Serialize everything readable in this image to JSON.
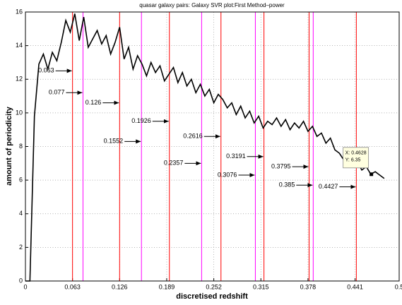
{
  "chart_data": {
    "type": "line",
    "title": "quasar galaxy pairs: Galaxy SVR plot:First Method–power",
    "xlabel": "discretised redshift",
    "ylabel": "amount of periodicity",
    "xlim": [
      0,
      0.5
    ],
    "xticks": [
      0,
      0.063,
      0.126,
      0.189,
      0.252,
      0.315,
      0.378,
      0.441,
      0.5
    ],
    "ylim": [
      0,
      16
    ],
    "yticks": [
      0,
      2,
      4,
      6,
      8,
      10,
      12,
      14,
      16
    ],
    "grid": true,
    "x": [
      0,
      0.006,
      0.012,
      0.018,
      0.024,
      0.03,
      0.036,
      0.042,
      0.048,
      0.054,
      0.06,
      0.066,
      0.072,
      0.078,
      0.084,
      0.09,
      0.096,
      0.102,
      0.108,
      0.114,
      0.12,
      0.126,
      0.132,
      0.138,
      0.144,
      0.15,
      0.156,
      0.162,
      0.168,
      0.174,
      0.18,
      0.186,
      0.192,
      0.198,
      0.204,
      0.21,
      0.216,
      0.222,
      0.228,
      0.234,
      0.24,
      0.246,
      0.252,
      0.258,
      0.264,
      0.27,
      0.276,
      0.282,
      0.288,
      0.294,
      0.3,
      0.306,
      0.312,
      0.318,
      0.324,
      0.33,
      0.336,
      0.342,
      0.348,
      0.354,
      0.36,
      0.366,
      0.372,
      0.378,
      0.384,
      0.39,
      0.396,
      0.402,
      0.408,
      0.414,
      0.42,
      0.426,
      0.432,
      0.438,
      0.444,
      0.45,
      0.456,
      0.462,
      0.468,
      0.474,
      0.48
    ],
    "series": [
      {
        "color": "#000000",
        "values": [
          0,
          0,
          9.8,
          12.9,
          13.5,
          12.6,
          13.6,
          13.1,
          14.2,
          15.5,
          14.8,
          15.9,
          14.3,
          15.7,
          13.9,
          14.4,
          14.9,
          14.1,
          14.6,
          13.5,
          14.2,
          15.1,
          13.2,
          13.9,
          12.6,
          13.4,
          12.9,
          12.2,
          13.0,
          12.4,
          12.8,
          11.9,
          12.3,
          12.7,
          11.8,
          12.4,
          11.6,
          12.0,
          11.2,
          11.7,
          11.0,
          11.4,
          10.6,
          11.1,
          10.8,
          10.3,
          10.6,
          9.9,
          10.4,
          9.7,
          10.1,
          9.4,
          9.8,
          9.1,
          9.5,
          9.3,
          9.7,
          9.2,
          9.6,
          9.0,
          9.4,
          9.1,
          9.5,
          8.9,
          9.2,
          8.6,
          8.8,
          8.2,
          8.5,
          7.8,
          7.6,
          7.2,
          7.4,
          6.9,
          7.1,
          6.6,
          6.8,
          6.35,
          6.5,
          6.3,
          6.1
        ]
      }
    ],
    "vlines": [
      {
        "x": 0.063,
        "color": "#ff0000"
      },
      {
        "x": 0.077,
        "color": "#ff00ff"
      },
      {
        "x": 0.126,
        "color": "#ff0000"
      },
      {
        "x": 0.1552,
        "color": "#ff00ff"
      },
      {
        "x": 0.1926,
        "color": "#ff0000"
      },
      {
        "x": 0.2357,
        "color": "#ff00ff"
      },
      {
        "x": 0.2616,
        "color": "#ff0000"
      },
      {
        "x": 0.3076,
        "color": "#ff00ff"
      },
      {
        "x": 0.3191,
        "color": "#ff0000"
      },
      {
        "x": 0.3795,
        "color": "#ff0000"
      },
      {
        "x": 0.385,
        "color": "#ff00ff"
      },
      {
        "x": 0.4427,
        "color": "#ff0000"
      }
    ],
    "datatip": {
      "x": 0.4628,
      "y": 6.35,
      "x_label": "X: 0.4628",
      "y_label": "Y: 6.35"
    }
  }
}
